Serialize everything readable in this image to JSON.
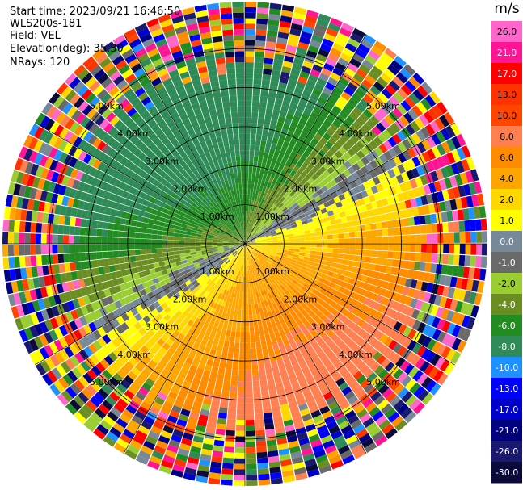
{
  "header": {
    "start_time": "Start time: 2023/09/21 16:46:50",
    "instrument": "WLS200s-181",
    "field": "Field: VEL",
    "elevation": "Elevation(deg): 35.30",
    "nrays": "NRays: 120"
  },
  "chart_data": {
    "type": "heatmap",
    "projection": "PPI polar",
    "n_rays": 120,
    "range_rings_km": [
      1,
      2,
      3,
      4,
      5
    ],
    "range_ring_labels": [
      "1.00km",
      "2.00km",
      "3.00km",
      "4.00km",
      "5.00km"
    ],
    "max_range_km": 6.2,
    "colorbar": {
      "unit": "m/s",
      "tick_labels": [
        "26.0",
        "21.0",
        "17.0",
        "13.0",
        "10.0",
        "8.0",
        "6.0",
        "4.0",
        "2.0",
        "1.0",
        "0.0",
        "-1.0",
        "-2.0",
        "-4.0",
        "-6.0",
        "-8.0",
        "-10.0",
        "-13.0",
        "-17.0",
        "-21.0",
        "-26.0",
        "-30.0"
      ],
      "colors": [
        "#ff66cc",
        "#ff1493",
        "#ff0000",
        "#ff3300",
        "#ff4500",
        "#ff7f50",
        "#ff8c00",
        "#ffa500",
        "#ffd700",
        "#ffff00",
        "#778899",
        "#696969",
        "#9acd32",
        "#6b8e23",
        "#228b22",
        "#2e8b57",
        "#1e90ff",
        "#0000ff",
        "#0000cd",
        "#000080",
        "#191970",
        "#0b0b3b"
      ]
    }
  }
}
